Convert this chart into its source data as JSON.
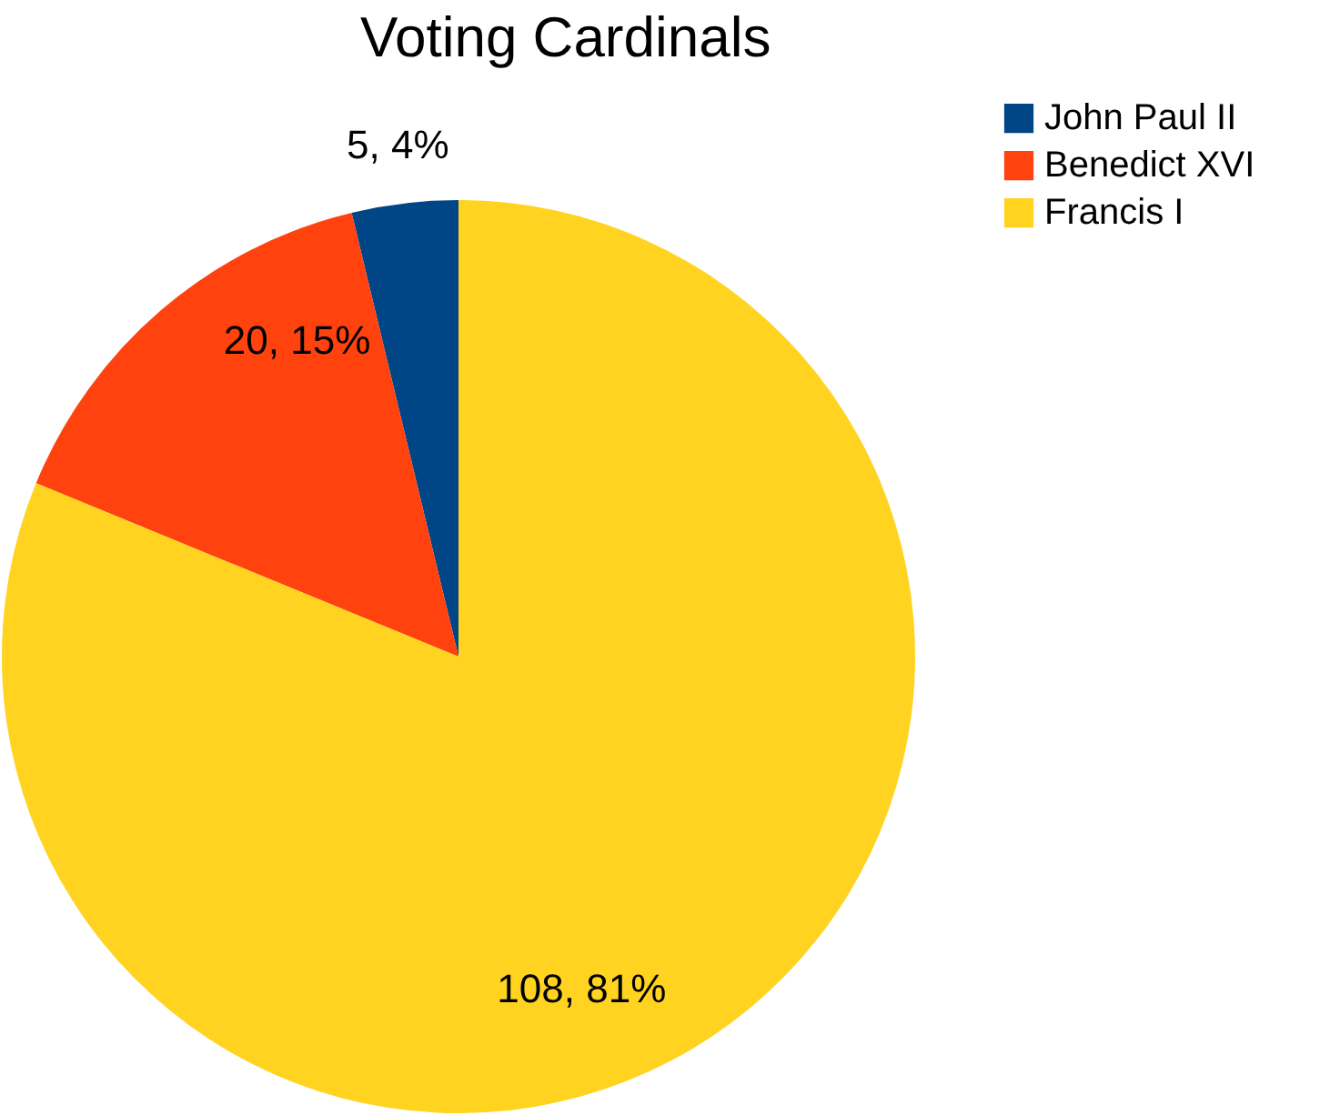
{
  "chart_data": {
    "type": "pie",
    "title": "Voting Cardinals",
    "categories": [
      "John Paul II",
      "Benedict XVI",
      "Francis I"
    ],
    "values": [
      5,
      20,
      108
    ],
    "colors": [
      "#004586",
      "#ff420e",
      "#ffd320"
    ],
    "value_labels": [
      "5, 4%",
      "20, 15%",
      "108, 81%"
    ],
    "legend": "top right"
  }
}
